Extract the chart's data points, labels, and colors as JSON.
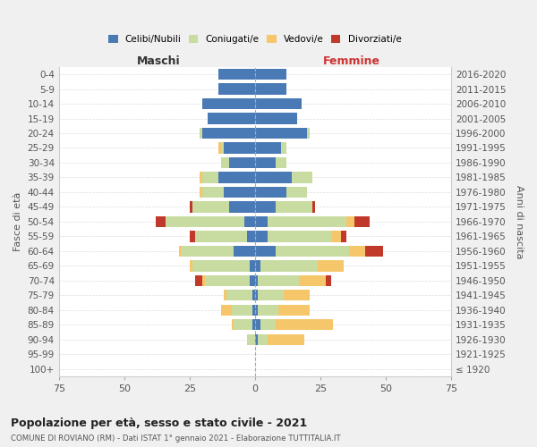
{
  "age_groups": [
    "0-4",
    "5-9",
    "10-14",
    "15-19",
    "20-24",
    "25-29",
    "30-34",
    "35-39",
    "40-44",
    "45-49",
    "50-54",
    "55-59",
    "60-64",
    "65-69",
    "70-74",
    "75-79",
    "80-84",
    "85-89",
    "90-94",
    "95-99",
    "100+"
  ],
  "birth_years": [
    "2016-2020",
    "2011-2015",
    "2006-2010",
    "2001-2005",
    "1996-2000",
    "1991-1995",
    "1986-1990",
    "1981-1985",
    "1976-1980",
    "1971-1975",
    "1966-1970",
    "1961-1965",
    "1956-1960",
    "1951-1955",
    "1946-1950",
    "1941-1945",
    "1936-1940",
    "1931-1935",
    "1926-1930",
    "1921-1925",
    "≤ 1920"
  ],
  "maschi_celibi": [
    14,
    14,
    20,
    18,
    20,
    12,
    10,
    14,
    12,
    10,
    4,
    3,
    8,
    2,
    2,
    1,
    1,
    1,
    0,
    0,
    0
  ],
  "maschi_coniugati": [
    0,
    0,
    0,
    0,
    1,
    1,
    3,
    6,
    8,
    14,
    30,
    20,
    20,
    22,
    17,
    10,
    8,
    7,
    3,
    0,
    0
  ],
  "maschi_vedovi": [
    0,
    0,
    0,
    0,
    0,
    1,
    0,
    1,
    1,
    0,
    0,
    0,
    1,
    1,
    1,
    1,
    4,
    1,
    0,
    0,
    0
  ],
  "maschi_divorziati": [
    0,
    0,
    0,
    0,
    0,
    0,
    0,
    0,
    0,
    1,
    4,
    2,
    0,
    0,
    3,
    0,
    0,
    0,
    0,
    0,
    0
  ],
  "femmine_nubili": [
    12,
    12,
    18,
    16,
    20,
    10,
    8,
    14,
    12,
    8,
    5,
    5,
    8,
    2,
    1,
    1,
    1,
    2,
    1,
    0,
    0
  ],
  "femmine_coniugate": [
    0,
    0,
    0,
    0,
    1,
    2,
    4,
    8,
    8,
    14,
    30,
    24,
    28,
    22,
    16,
    10,
    8,
    6,
    4,
    0,
    0
  ],
  "femmine_vedove": [
    0,
    0,
    0,
    0,
    0,
    0,
    0,
    0,
    0,
    0,
    3,
    4,
    6,
    10,
    10,
    10,
    12,
    22,
    14,
    0,
    0
  ],
  "femmine_divorziate": [
    0,
    0,
    0,
    0,
    0,
    0,
    0,
    0,
    0,
    1,
    6,
    2,
    7,
    0,
    2,
    0,
    0,
    0,
    0,
    0,
    0
  ],
  "color_celibi": "#4a7ab5",
  "color_coniugati": "#c8dba0",
  "color_vedovi": "#f5c76a",
  "color_divorziati": "#c0392b",
  "xlim": 75,
  "title": "Popolazione per età, sesso e stato civile - 2021",
  "subtitle": "COMUNE DI ROVIANO (RM) - Dati ISTAT 1° gennaio 2021 - Elaborazione TUTTITALIA.IT",
  "bg_color": "#f0f0f0"
}
